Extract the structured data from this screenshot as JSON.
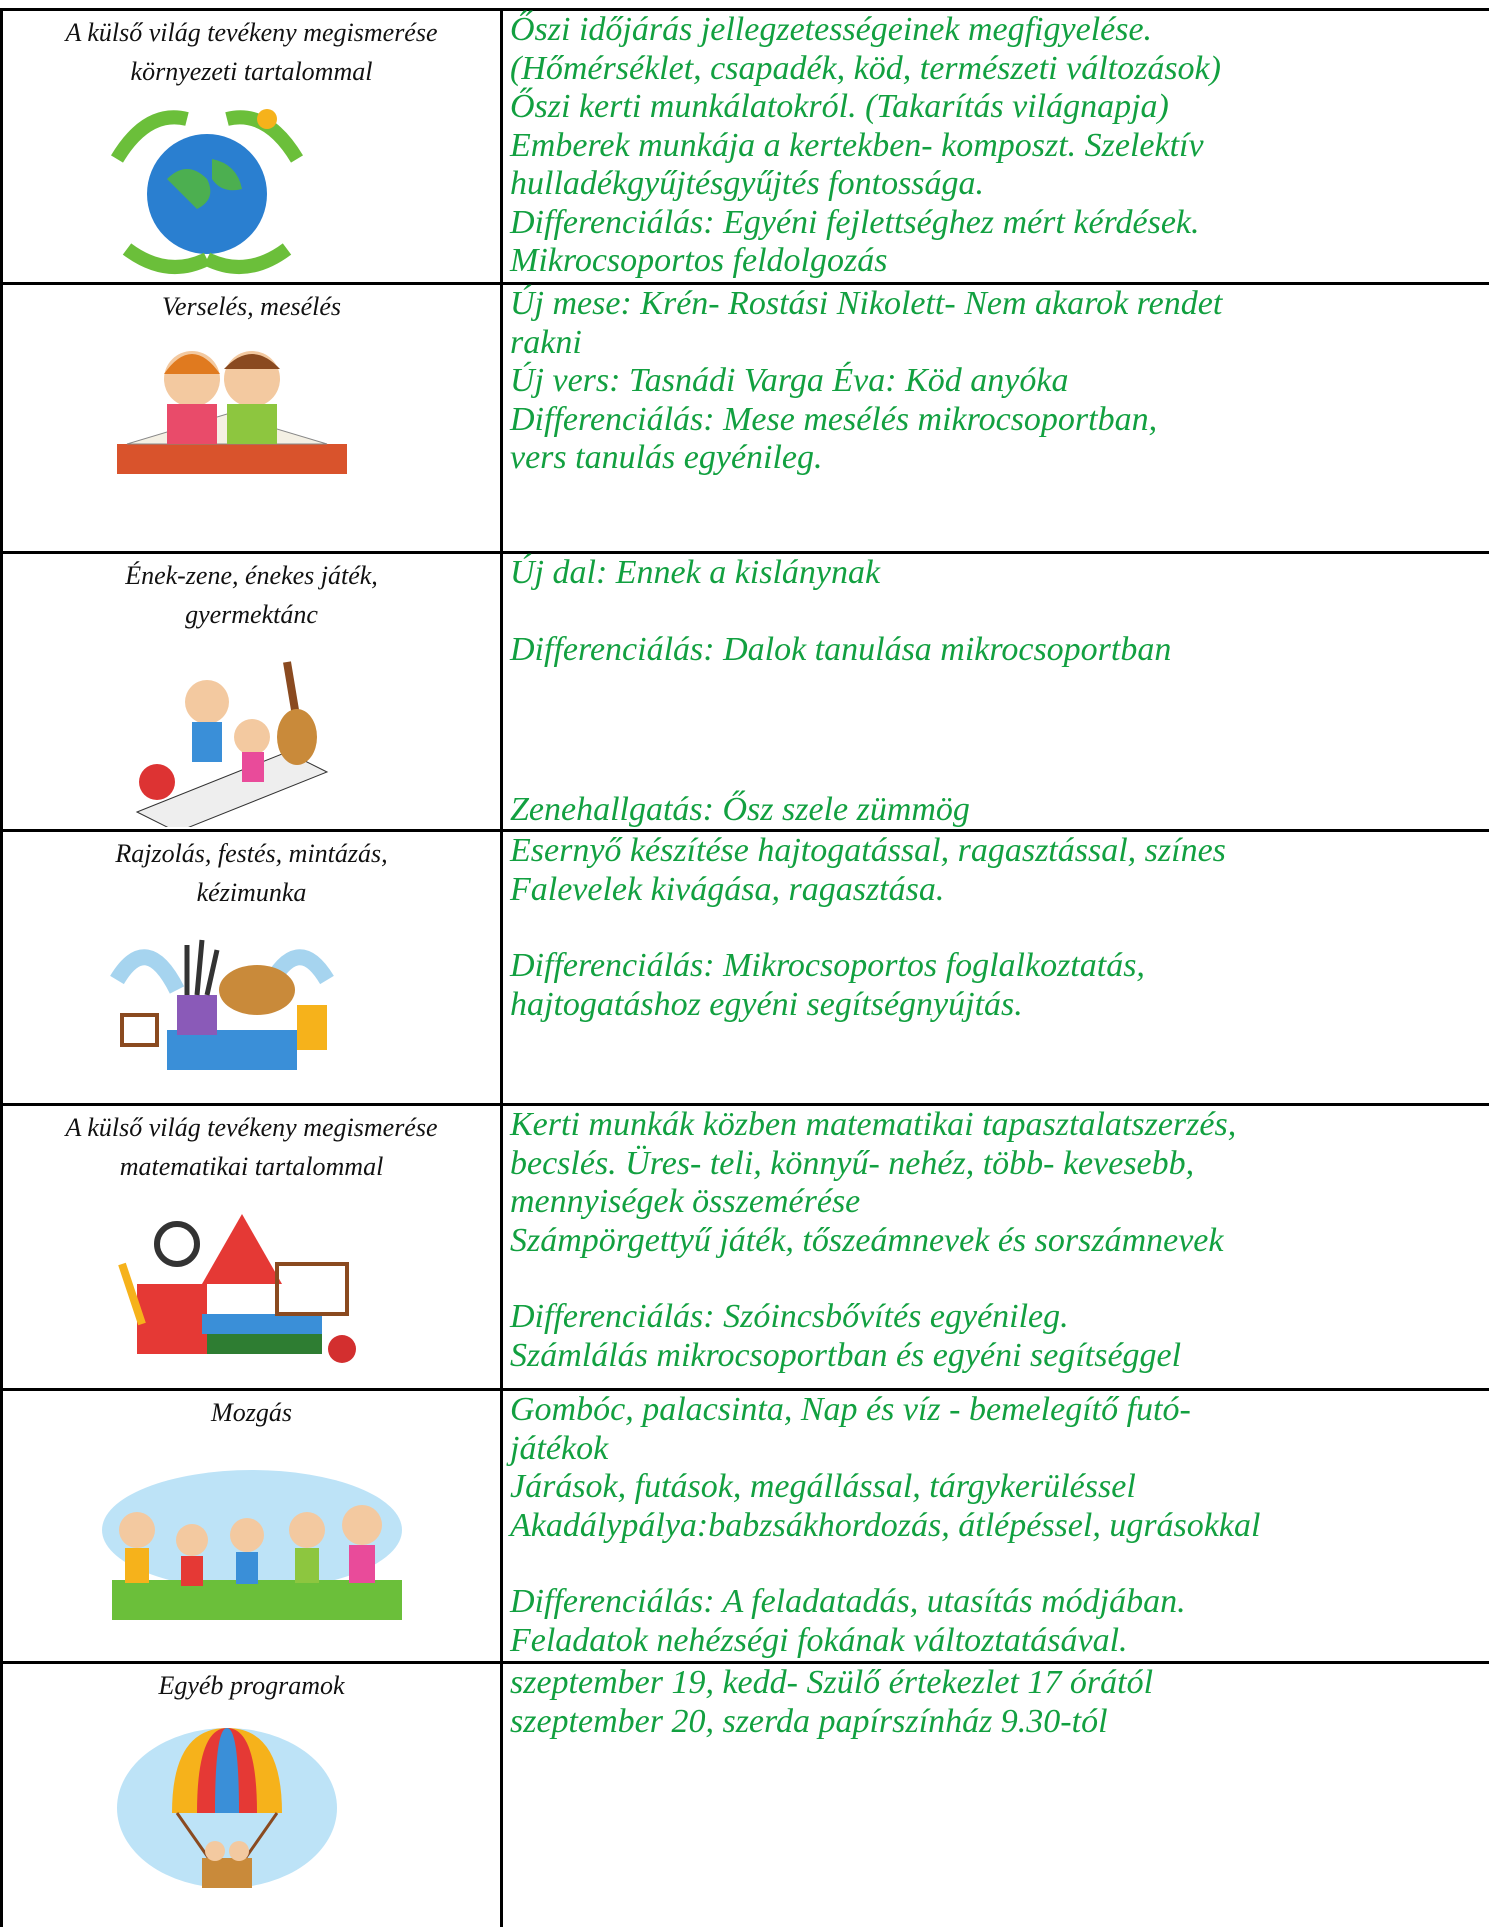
{
  "rows": [
    {
      "label": [
        "A külső világ tevékeny megismerése",
        "környezeti tartalommal"
      ],
      "paragraphs": [
        [
          "Őszi időjárás jellegzetességeinek megfigyelése.",
          "(Hőmérséklet, csapadék, köd, természeti változások)",
          "Őszi kerti munkálatokról. (Takarítás világnapja)",
          "Emberek munkája a kertekben- komposzt. Szelektív",
          "hulladékgyűjtésgyűjtés fontossága.",
          "Differenciálás: Egyéni fejlettséghez mért kérdések.",
          "Mikrocsoportos feldolgozás"
        ]
      ]
    },
    {
      "label": [
        "Verselés, mesélés"
      ],
      "paragraphs": [
        [
          "Új mese: Krén- Rostási Nikolett- Nem akarok rendet",
          "rakni",
          "Új vers: Tasnádi Varga Éva: Köd anyóka",
          "Differenciálás: Mese mesélés mikrocsoportban,",
          "vers tanulás egyénileg."
        ]
      ]
    },
    {
      "label": [
        "Ének-zene, énekes játék,",
        "gyermektánc"
      ],
      "paragraphs": [
        [
          "Új dal: Ennek a kislánynak"
        ],
        [
          "Differenciálás: Dalok tanulása mikrocsoportban"
        ],
        [
          "Zenehallgatás: Ősz szele zümmög"
        ]
      ]
    },
    {
      "label": [
        "Rajzolás, festés, mintázás,",
        "kézimunka"
      ],
      "paragraphs": [
        [
          "Esernyő készítése hajtogatással, ragasztással, színes",
          "Falevelek kivágása, ragasztása."
        ],
        [
          "Differenciálás: Mikrocsoportos foglalkoztatás,",
          "hajtogatáshoz egyéni segítségnyújtás."
        ]
      ]
    },
    {
      "label": [
        "A külső világ tevékeny megismerése",
        "matematikai tartalommal"
      ],
      "paragraphs": [
        [
          "Kerti munkák közben matematikai tapasztalatszerzés,",
          "becslés. Üres- teli, könnyű- nehéz, több- kevesebb,",
          "mennyiségek összemérése",
          "Számpörgettyű játék, tőszeámnevek és sorszámnevek"
        ],
        [
          "Differenciálás: Szóincsbővítés egyénileg.",
          "Számlálás mikrocsoportban és egyéni segítséggel"
        ]
      ]
    },
    {
      "label": [
        "Mozgás"
      ],
      "paragraphs": [
        [
          "Gombóc, palacsinta, Nap és víz - bemelegítő futó-",
          "játékok",
          "Járások, futások, megállással, tárgykerüléssel",
          "Akadálypálya:babzsákhordozás, átlépéssel, ugrásokkal"
        ],
        [
          "Differenciálás: A feladatadás, utasítás módjában.",
          "Feladatok nehézségi fokának változtatásával."
        ]
      ]
    },
    {
      "label": [
        "Egyéb programok"
      ],
      "paragraphs": [
        [
          "szeptember 19, kedd- Szülő értekezlet 17 órától",
          "szeptember 20, szerda papírszínház 9.30-tól"
        ]
      ]
    }
  ]
}
